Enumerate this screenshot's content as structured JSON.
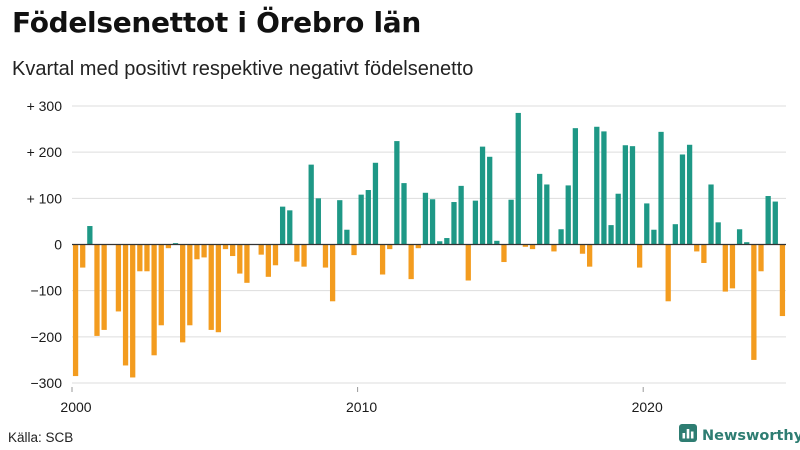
{
  "title": "Födelsenettot i Örebro län",
  "subtitle": "Kvartal med positivt respektive negativt födelsenetto",
  "source": "Källa: SCB",
  "brand": {
    "name": "Newsworthy",
    "logo_icon": "bar-chart-logo-icon"
  },
  "colors": {
    "positive": "#1e9886",
    "negative": "#f39c1f",
    "grid": "#dddddd",
    "zero": "#333333",
    "text": "#1a1a1a"
  },
  "chart_data": {
    "type": "bar",
    "x_start": 2000,
    "x_end": 2025,
    "ylim": [
      -300,
      300
    ],
    "yticks": [
      {
        "value": 300,
        "label": "+ 300"
      },
      {
        "value": 200,
        "label": "+ 200"
      },
      {
        "value": 100,
        "label": "+ 100"
      },
      {
        "value": 0,
        "label": "0"
      },
      {
        "value": -100,
        "label": "−100"
      },
      {
        "value": -200,
        "label": "−200"
      },
      {
        "value": -300,
        "label": "−300"
      }
    ],
    "xticks": [
      {
        "value": 2000,
        "label": "2000"
      },
      {
        "value": 2010,
        "label": "2010"
      },
      {
        "value": 2020,
        "label": "2020"
      }
    ],
    "grid": true,
    "legend": "none",
    "values": [
      -285,
      -50,
      40,
      -198,
      -185,
      0,
      -145,
      -262,
      -288,
      -58,
      -58,
      -240,
      -175,
      -8,
      3,
      -212,
      -175,
      -32,
      -28,
      -185,
      -190,
      -10,
      -25,
      -63,
      -83,
      0,
      -22,
      -70,
      -45,
      82,
      74,
      -37,
      -48,
      173,
      100,
      -50,
      -123,
      96,
      32,
      -23,
      108,
      118,
      177,
      -65,
      -10,
      224,
      133,
      -75,
      -8,
      112,
      98,
      7,
      14,
      92,
      127,
      -78,
      95,
      212,
      190,
      8,
      -38,
      97,
      285,
      -5,
      -10,
      153,
      130,
      -15,
      33,
      128,
      252,
      -20,
      -48,
      255,
      245,
      42,
      110,
      215,
      213,
      -50,
      89,
      32,
      244,
      -123,
      44,
      195,
      216,
      -15,
      -40,
      130,
      48,
      -102,
      -95,
      33,
      5,
      -250,
      -58,
      105,
      93,
      -155
    ]
  }
}
